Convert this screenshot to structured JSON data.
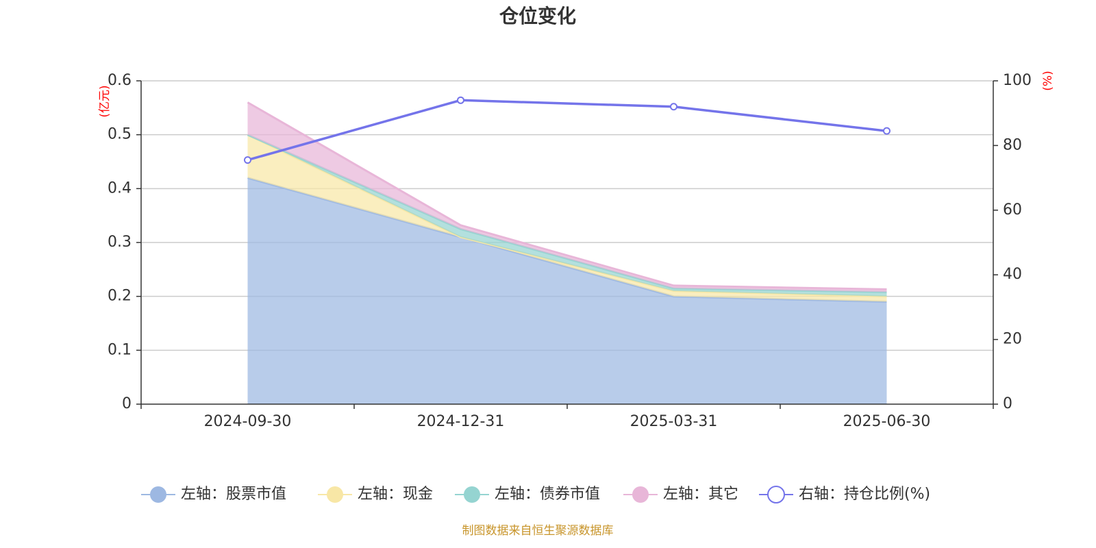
{
  "chart_data": {
    "type": "area",
    "title": "仓位变化",
    "left_axis_unit": "(亿元)",
    "right_axis_unit": "(%)",
    "categories": [
      "2024-09-30",
      "2024-12-31",
      "2025-03-31",
      "2025-06-30"
    ],
    "left_ylim": [
      0,
      0.6
    ],
    "left_yticks": [
      "0",
      "0.1",
      "0.2",
      "0.3",
      "0.4",
      "0.5",
      "0.6"
    ],
    "right_ylim": [
      0,
      100
    ],
    "right_yticks": [
      "0",
      "20",
      "40",
      "60",
      "80",
      "100"
    ],
    "stacked": true,
    "grid": true,
    "legend_position": "bottom",
    "series": [
      {
        "name": "左轴：股票市值",
        "axis": "left",
        "kind": "area",
        "values": [
          0.42,
          0.31,
          0.2,
          0.19
        ],
        "color": "#9db8e2"
      },
      {
        "name": "左轴：现金",
        "axis": "left",
        "kind": "area",
        "values": [
          0.08,
          0.0,
          0.01,
          0.01
        ],
        "color": "#f8e7a6"
      },
      {
        "name": "左轴：债券市值",
        "axis": "left",
        "kind": "area",
        "values": [
          0.0,
          0.015,
          0.005,
          0.008
        ],
        "color": "#95d4d1"
      },
      {
        "name": "左轴：其它",
        "axis": "left",
        "kind": "area",
        "values": [
          0.06,
          0.007,
          0.005,
          0.005
        ],
        "color": "#e8b6d8"
      },
      {
        "name": "右轴：持仓比例(%)",
        "axis": "right",
        "kind": "line",
        "values": [
          75.5,
          94,
          92,
          84.5
        ],
        "color": "#7474ea"
      }
    ]
  },
  "source_note": "制图数据来自恒生聚源数据库"
}
